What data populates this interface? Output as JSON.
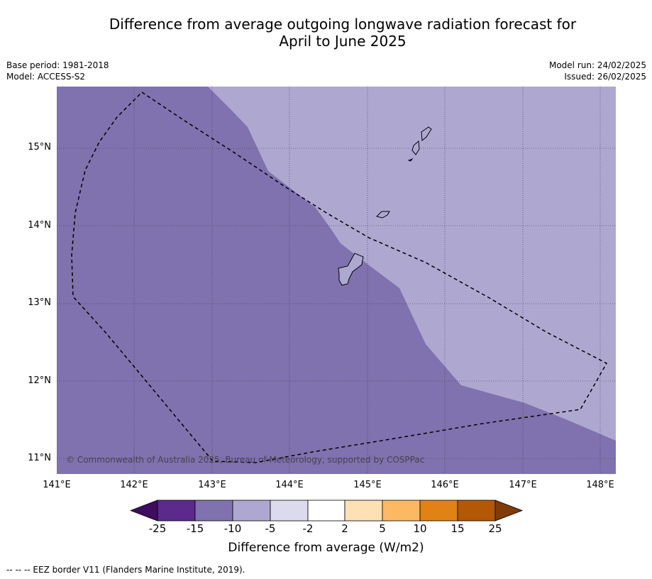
{
  "title_line1": "Difference from average outgoing longwave radiation forecast for",
  "title_line2": "April to June 2025",
  "base_period": "Base period: 1981-2018",
  "model": "Model: ACCESS-S2",
  "model_run": "Model run: 24/02/2025",
  "issued": "Issued: 26/02/2025",
  "copyright": "© Commonwealth of Australia 2025, Bureau of Meteorology, supported by COSPPac",
  "lat_labels": [
    "15°N",
    "14°N",
    "13°N",
    "12°N",
    "11°N"
  ],
  "lon_labels": [
    "141°E",
    "142°E",
    "143°E",
    "144°E",
    "145°E",
    "146°E",
    "147°E",
    "148°E"
  ],
  "colorbar": {
    "ticks": [
      "-25",
      "-15",
      "-10",
      "-5",
      "-2",
      "2",
      "5",
      "10",
      "15",
      "25"
    ],
    "colors": [
      "#3f0d5e",
      "#5b2a8c",
      "#7f72ae",
      "#aea8d1",
      "#dcdbed",
      "#ffffff",
      "#fde0b3",
      "#fdb863",
      "#e08214",
      "#b35806",
      "#7f3b08"
    ],
    "label": "Difference from average (W/m2)"
  },
  "map_colors": {
    "band_minus15_to_minus10": "#7f72ae",
    "band_minus10_to_minus5": "#aea8d1"
  },
  "footnote": "--  --  -- EEZ border V11 (Flanders Marine Institute, 2019)."
}
